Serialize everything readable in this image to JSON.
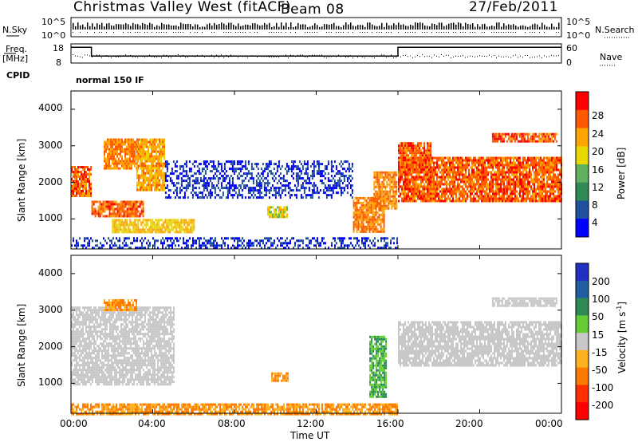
{
  "header": {
    "station": "Christmas Valley West (fitACF)",
    "beam": "Beam 08",
    "date": "27/Feb/2011"
  },
  "strips": {
    "nsky_label": "N.Sky",
    "nsky_ticks": [
      "10^5",
      "10^0"
    ],
    "nsearch_label": "N.Search",
    "freq_label_1": "Freq.",
    "freq_label_2": "[MHz]",
    "freq_ticks": [
      "18",
      "8"
    ],
    "nave_label": "Nave",
    "nave_ticks": [
      "60",
      "0"
    ],
    "cpid_label": "CPID",
    "cpid_value": "normal 150 IF",
    "freq_steps": [
      [
        0,
        16.5
      ],
      [
        1,
        11.5
      ],
      [
        16,
        16.5
      ],
      [
        24,
        16.5
      ]
    ]
  },
  "axes": {
    "xlabel": "Time UT",
    "xticks": [
      "00:00",
      "04:00",
      "08:00",
      "12:00",
      "16:00",
      "20:00",
      "00:00"
    ],
    "ylabel": "Slant Range [km]",
    "yticks": [
      "1000",
      "2000",
      "3000",
      "4000"
    ]
  },
  "power_scale": {
    "label": "Power [dB]",
    "ticks": [
      "28",
      "24",
      "20",
      "16",
      "12",
      "8",
      "4"
    ],
    "colors": [
      "#ff0000",
      "#ff5a00",
      "#ffa500",
      "#e8d800",
      "#5fb05f",
      "#2e8b57",
      "#2050a0",
      "#0000ff"
    ]
  },
  "velocity_scale": {
    "label": "Velocity [m s",
    "label_sup": "-1",
    "label_end": "]",
    "ticks": [
      "200",
      "100",
      "50",
      "15",
      "-15",
      "-50",
      "-100",
      "-200"
    ],
    "colors": [
      "#2030c0",
      "#2060a0",
      "#2e8b57",
      "#66cc33",
      "#c8c8c8",
      "#ffb020",
      "#ff7a00",
      "#ff3000",
      "#ff0000"
    ]
  },
  "chart_data": {
    "type": "heatmap",
    "title": "Christmas Valley West (fitACF)",
    "xlabel": "Time UT",
    "ylabel": "Slant Range [km]",
    "xlim": [
      0,
      24
    ],
    "ylim": [
      180,
      4500
    ],
    "power_colorbar_range_dB": [
      0,
      32
    ],
    "velocity_colorbar_range": [
      -250,
      250
    ],
    "power_regions": [
      {
        "t0": 0.0,
        "t1": 1.0,
        "r0": 1650,
        "r1": 2450,
        "level": 28
      },
      {
        "t0": 1.0,
        "t1": 3.5,
        "r0": 1050,
        "r1": 1500,
        "level": 28
      },
      {
        "t0": 1.6,
        "t1": 3.3,
        "r0": 2400,
        "r1": 3200,
        "level": 26
      },
      {
        "t0": 3.2,
        "t1": 4.6,
        "r0": 1800,
        "r1": 3200,
        "level": 24
      },
      {
        "t0": 2.0,
        "t1": 6.0,
        "r0": 650,
        "r1": 1000,
        "level": 22
      },
      {
        "t0": 4.6,
        "t1": 13.8,
        "r0": 1600,
        "r1": 2600,
        "level": 6
      },
      {
        "t0": 9.6,
        "t1": 10.6,
        "r0": 1050,
        "r1": 1350,
        "level": 20
      },
      {
        "t0": 13.8,
        "t1": 15.3,
        "r0": 650,
        "r1": 1600,
        "level": 26
      },
      {
        "t0": 14.8,
        "t1": 15.9,
        "r0": 1300,
        "r1": 2300,
        "level": 26
      },
      {
        "t0": 16.0,
        "t1": 24.0,
        "r0": 1500,
        "r1": 2700,
        "level": 28
      },
      {
        "t0": 16.0,
        "t1": 17.6,
        "r0": 2300,
        "r1": 3100,
        "level": 28
      },
      {
        "t0": 20.6,
        "t1": 23.8,
        "r0": 3100,
        "r1": 3350,
        "level": 28
      },
      {
        "t0": 0.0,
        "t1": 16.0,
        "r0": 180,
        "r1": 500,
        "level": 6
      }
    ],
    "velocity_regions": [
      {
        "t0": 0.0,
        "t1": 16.0,
        "r0": 180,
        "r1": 450,
        "v": -50
      },
      {
        "t0": 0.0,
        "t1": 5.0,
        "r0": 1000,
        "r1": 3100,
        "v": 0
      },
      {
        "t0": 1.6,
        "t1": 3.2,
        "r0": 3000,
        "r1": 3300,
        "v": -50
      },
      {
        "t0": 9.8,
        "t1": 10.6,
        "r0": 1050,
        "r1": 1300,
        "v": -50
      },
      {
        "t0": 14.6,
        "t1": 15.4,
        "r0": 600,
        "r1": 2300,
        "v": 30
      },
      {
        "t0": 16.0,
        "t1": 24.0,
        "r0": 1500,
        "r1": 2700,
        "v": 0
      },
      {
        "t0": 20.6,
        "t1": 23.8,
        "r0": 3100,
        "r1": 3350,
        "v": 0
      }
    ]
  }
}
